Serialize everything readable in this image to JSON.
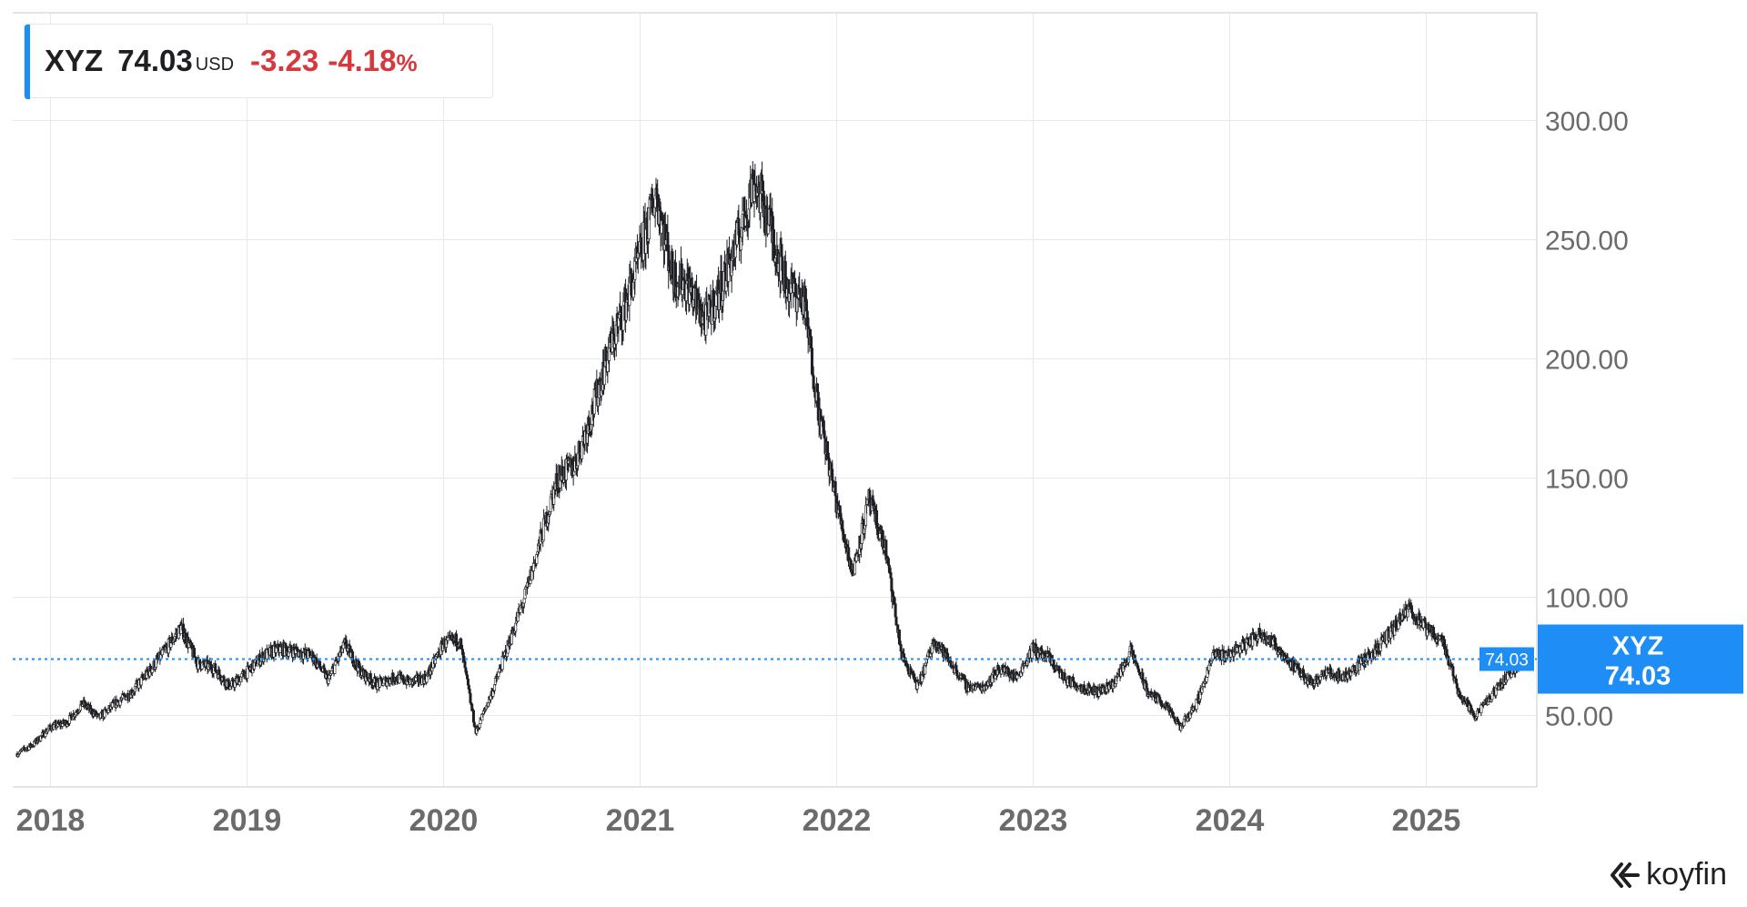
{
  "header": {
    "symbol": "XYZ",
    "price": "74.03",
    "currency": "USD",
    "change": "-3.23",
    "change_pct": "-4.18",
    "change_pct_sign": "%"
  },
  "branding": {
    "name": "koyfin",
    "logo_icon": "koyfin-logo-icon"
  },
  "colors": {
    "price_line": "#1e8df5",
    "negative": "#d6393d",
    "candle": "#1d1f23",
    "grid": "#e8e8e8",
    "axis_text": "#6b6b6b"
  },
  "chart_data": {
    "type": "line",
    "series": [
      {
        "name": "XYZ",
        "x": [
          "2017-11",
          "2017-12",
          "2018-01",
          "2018-02",
          "2018-03",
          "2018-04",
          "2018-05",
          "2018-06",
          "2018-07",
          "2018-08",
          "2018-09",
          "2018-10",
          "2018-11",
          "2018-12",
          "2019-01",
          "2019-02",
          "2019-03",
          "2019-04",
          "2019-05",
          "2019-06",
          "2019-07",
          "2019-08",
          "2019-09",
          "2019-10",
          "2019-11",
          "2019-12",
          "2020-01",
          "2020-02",
          "2020-03",
          "2020-04",
          "2020-05",
          "2020-06",
          "2020-07",
          "2020-08",
          "2020-09",
          "2020-10",
          "2020-11",
          "2020-12",
          "2021-01",
          "2021-02",
          "2021-03",
          "2021-04",
          "2021-05",
          "2021-06",
          "2021-07",
          "2021-08",
          "2021-09",
          "2021-10",
          "2021-11",
          "2021-12",
          "2022-01",
          "2022-02",
          "2022-03",
          "2022-04",
          "2022-05",
          "2022-06",
          "2022-07",
          "2022-08",
          "2022-09",
          "2022-10",
          "2022-11",
          "2022-12",
          "2023-01",
          "2023-02",
          "2023-03",
          "2023-04",
          "2023-05",
          "2023-06",
          "2023-07",
          "2023-08",
          "2023-09",
          "2023-10",
          "2023-11",
          "2023-12",
          "2024-01",
          "2024-02",
          "2024-03",
          "2024-04",
          "2024-05",
          "2024-06",
          "2024-07",
          "2024-08",
          "2024-09",
          "2024-10",
          "2024-11",
          "2024-12",
          "2025-01",
          "2025-02",
          "2025-03",
          "2025-04",
          "2025-05",
          "2025-06",
          "2025-07"
        ],
        "values": [
          34,
          38,
          45,
          47,
          55,
          49,
          55,
          60,
          68,
          77,
          87,
          72,
          70,
          62,
          68,
          75,
          78,
          77,
          75,
          65,
          80,
          68,
          63,
          66,
          64,
          66,
          80,
          82,
          43,
          60,
          80,
          100,
          125,
          150,
          155,
          175,
          200,
          220,
          242,
          270,
          235,
          230,
          215,
          230,
          250,
          275,
          255,
          230,
          225,
          175,
          140,
          110,
          140,
          120,
          75,
          62,
          82,
          72,
          62,
          62,
          70,
          66,
          78,
          74,
          65,
          62,
          60,
          64,
          77,
          60,
          55,
          45,
          55,
          75,
          76,
          80,
          85,
          78,
          70,
          64,
          68,
          66,
          72,
          78,
          86,
          95,
          86,
          82,
          60,
          50,
          58,
          67,
          74
        ]
      }
    ],
    "y_ticks": [
      "300.00",
      "250.00",
      "200.00",
      "150.00",
      "100.00",
      "50.00"
    ],
    "ylim": [
      20,
      345
    ],
    "x_ticks": [
      "2018",
      "2019",
      "2020",
      "2021",
      "2022",
      "2023",
      "2024",
      "2025"
    ],
    "last_value": "74.03",
    "last_label_symbol": "XYZ",
    "last_label_value": "74.03",
    "grid": true,
    "legend": "top-left"
  }
}
